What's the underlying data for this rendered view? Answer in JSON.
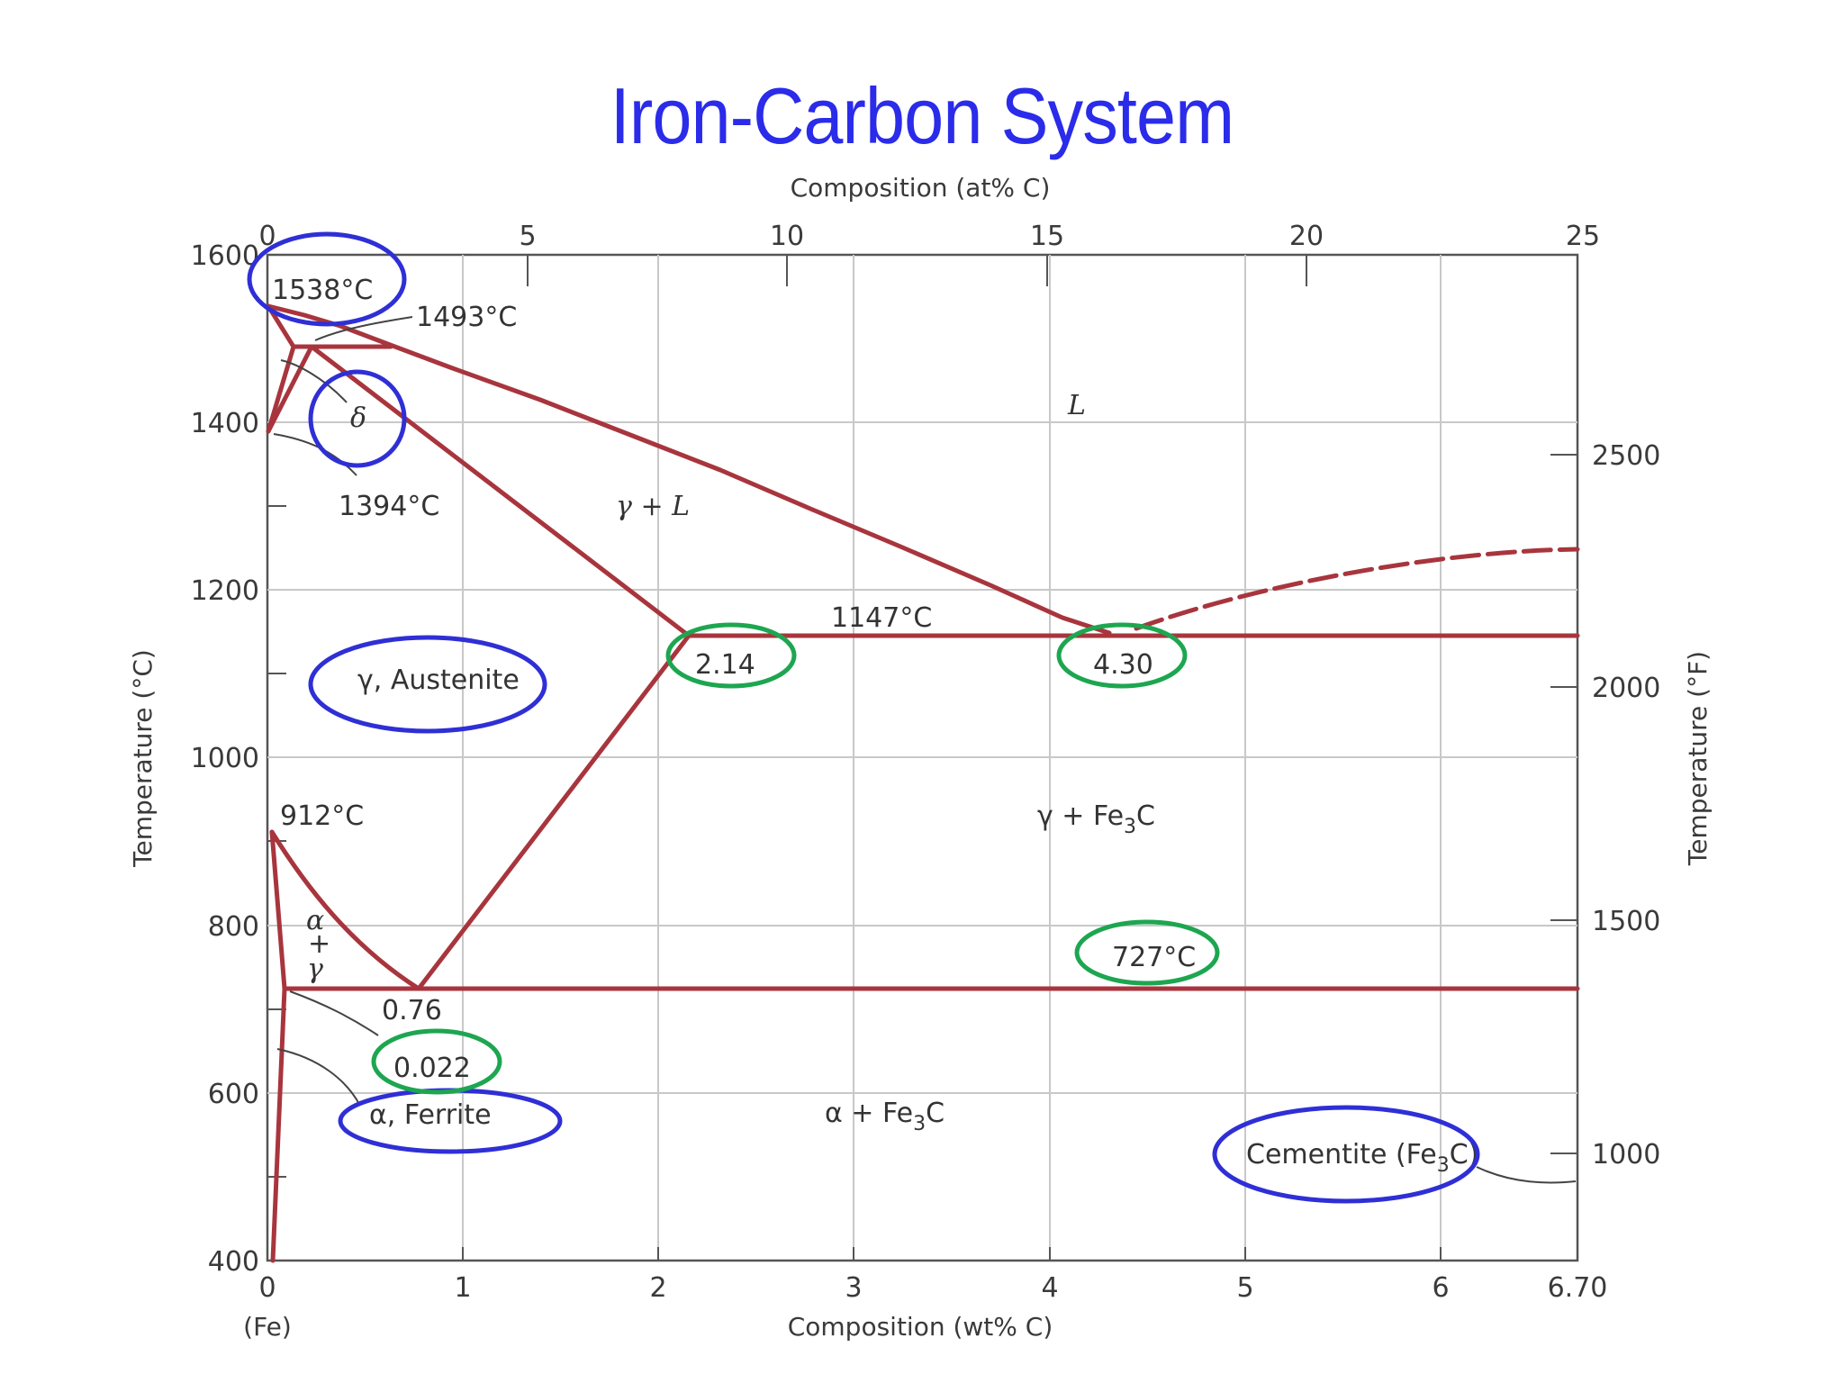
{
  "title": "Iron-Carbon System",
  "axes": {
    "top_label": "Composition (at% C)",
    "bottom_label": "Composition (wt% C)",
    "left_label": "Temperature (°C)",
    "right_label": "Temperature (°F)",
    "bottom_sublabel": "(Fe)",
    "top_ticks": [
      "0",
      "5",
      "10",
      "15",
      "20",
      "25"
    ],
    "bottom_ticks": [
      "0",
      "1",
      "2",
      "3",
      "4",
      "5",
      "6",
      "6.70"
    ],
    "left_ticks": [
      "1600",
      "1400",
      "1200",
      "1000",
      "800",
      "600",
      "400"
    ],
    "right_ticks": [
      "2500",
      "2000",
      "1500",
      "1000"
    ]
  },
  "labels": {
    "t1538": "1538°C",
    "t1493": "1493°C",
    "delta": "δ",
    "t1394": "1394°C",
    "L": "L",
    "gamma_L": "γ + L",
    "t1147": "1147°C",
    "c214": "2.14",
    "c430": "4.30",
    "austenite": "γ, Austenite",
    "t912": "912°C",
    "gamma_fe3c_a": "γ + Fe",
    "gamma_fe3c_sub": "3",
    "gamma_fe3c_b": "C",
    "alpha": "α",
    "plus": "+",
    "gamma": "γ",
    "t727": "727°C",
    "c076": "0.76",
    "c0022": "0.022",
    "ferrite": "α, Ferrite",
    "alpha_fe3c_a": "α + Fe",
    "alpha_fe3c_sub": "3",
    "alpha_fe3c_b": "C",
    "cementite_a": "Cementite (Fe",
    "cementite_sub": "3",
    "cementite_b": "C)"
  },
  "highlight_colors": {
    "blue": "#2f2fd6",
    "green": "#1da650",
    "phase_line": "#a8353d"
  }
}
